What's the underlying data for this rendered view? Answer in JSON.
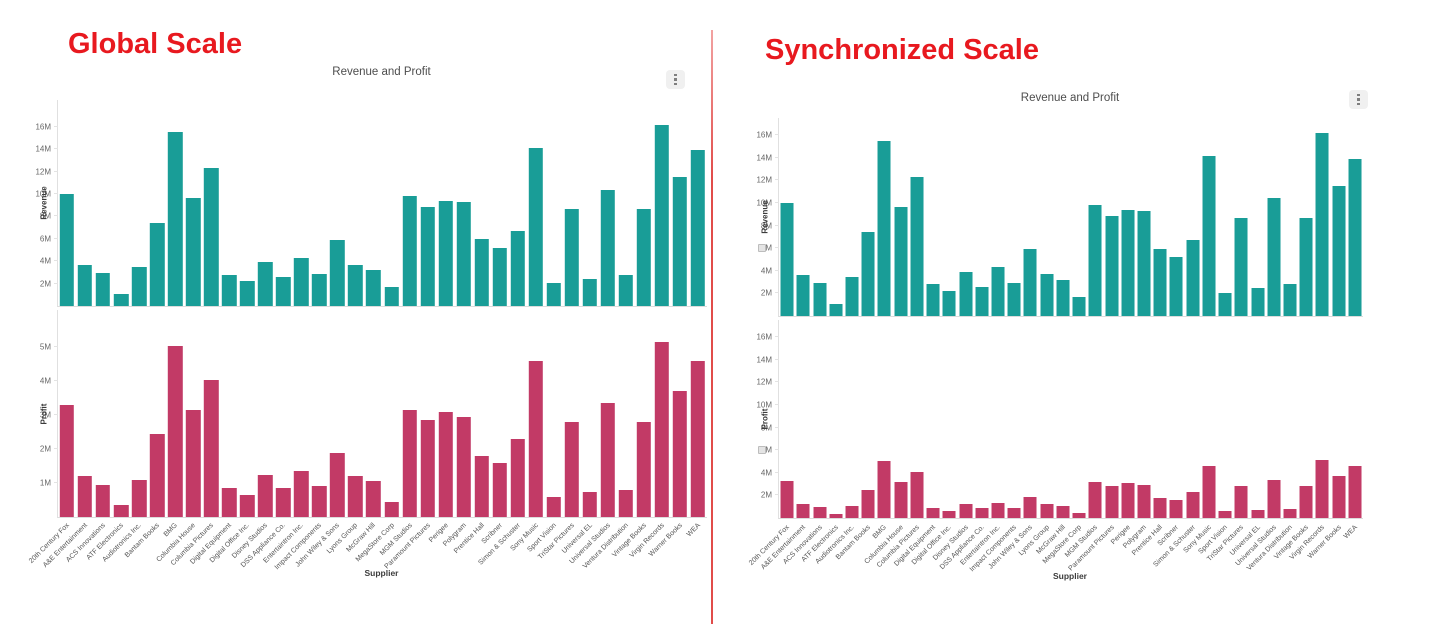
{
  "colors": {
    "revenue_bar": "#199d97",
    "profit_bar": "#c23a66",
    "heading_red": "#e8191f",
    "divider_red": "#e14c4a"
  },
  "panels": [
    {
      "heading": "Global Scale",
      "chart_title": "Revenue and Profit",
      "menu_icon": "kebab-menu-icon",
      "x_axis_title": "Supplier",
      "y_axes": [
        {
          "title": "Revenue",
          "ticks": [
            "2M",
            "4M",
            "6M",
            "8M",
            "10M",
            "12M",
            "14M",
            "16M"
          ]
        },
        {
          "title": "Profit",
          "ticks": [
            "1M",
            "2M",
            "3M",
            "4M",
            "5M"
          ]
        }
      ]
    },
    {
      "heading": "Synchronized Scale",
      "chart_title": "Revenue and Profit",
      "menu_icon": "kebab-menu-icon",
      "x_axis_title": "Supplier",
      "sync_icon": "axis-sync-icon",
      "y_axes": [
        {
          "title": "Revenue",
          "ticks": [
            "2M",
            "4M",
            "6M",
            "8M",
            "10M",
            "12M",
            "14M",
            "16M"
          ]
        },
        {
          "title": "Profit",
          "ticks": [
            "2M",
            "4M",
            "6M",
            "8M",
            "10M",
            "12M",
            "14M",
            "16M"
          ]
        }
      ]
    }
  ],
  "chart_data": [
    {
      "type": "bar",
      "panel": "Global Scale",
      "title": "Revenue and Profit",
      "xlabel": "Supplier",
      "units": "M",
      "grid": false,
      "legend": false,
      "categories": [
        "20th Century Fox",
        "A&E Entertainment",
        "ACS Innovations",
        "ATF Electronics",
        "Audiotronics Inc.",
        "Bantam Books",
        "BMG",
        "Columbia House",
        "Columbia Pictures",
        "Digital Equipment",
        "Digital Office Inc.",
        "Disney Studios",
        "DSS Appliance Co.",
        "Entertaintron Inc.",
        "Impact Components",
        "John Wiley & Sons",
        "Lyons Group",
        "McGraw Hill",
        "MegaStore Corp",
        "MGM Studios",
        "Paramount Pictures",
        "Perigee",
        "Polygram",
        "Prentice Hall",
        "Scribner",
        "Simon & Schuster",
        "Sony Music",
        "Sport Vision",
        "TriStar Pictures",
        "Universal EL",
        "Universal Studios",
        "Ventura Distribution",
        "Vintage Books",
        "Virgin Records",
        "Warner Books",
        "WEA"
      ],
      "series": [
        {
          "name": "Revenue",
          "color": "#199d97",
          "values": [
            10.0,
            3.65,
            2.95,
            1.1,
            3.45,
            7.4,
            15.5,
            9.65,
            12.3,
            2.8,
            2.2,
            3.9,
            2.6,
            4.3,
            2.9,
            5.9,
            3.7,
            3.2,
            1.7,
            9.85,
            8.85,
            9.4,
            9.25,
            5.95,
            5.2,
            6.7,
            14.1,
            2.05,
            8.7,
            2.45,
            10.4,
            2.8,
            8.7,
            16.2,
            11.5,
            13.9
          ]
        },
        {
          "name": "Profit",
          "color": "#c23a66",
          "values": [
            3.3,
            1.2,
            0.95,
            0.35,
            1.1,
            2.45,
            5.05,
            3.15,
            4.05,
            0.85,
            0.65,
            1.25,
            0.85,
            1.35,
            0.9,
            1.9,
            1.2,
            1.05,
            0.45,
            3.15,
            2.85,
            3.1,
            2.95,
            1.8,
            1.6,
            2.3,
            4.6,
            0.6,
            2.8,
            0.75,
            3.35,
            0.8,
            2.8,
            5.15,
            3.7,
            4.6
          ]
        }
      ],
      "revenue_ylim_M": [
        0,
        18.4
      ],
      "revenue_ticks_M": [
        2,
        4,
        6,
        8,
        10,
        12,
        14,
        16
      ],
      "profit_ylim_M": [
        0,
        6.1
      ],
      "profit_ticks_M": [
        1,
        2,
        3,
        4,
        5
      ]
    },
    {
      "type": "bar",
      "panel": "Synchronized Scale",
      "title": "Revenue and Profit",
      "xlabel": "Supplier",
      "units": "M",
      "grid": false,
      "legend": false,
      "categories": [
        "20th Century Fox",
        "A&E Entertainment",
        "ACS Innovations",
        "ATF Electronics",
        "Audiotronics Inc.",
        "Bantam Books",
        "BMG",
        "Columbia House",
        "Columbia Pictures",
        "Digital Equipment",
        "Digital Office Inc.",
        "Disney Studios",
        "DSS Appliance Co.",
        "Entertaintron Inc.",
        "Impact Components",
        "John Wiley & Sons",
        "Lyons Group",
        "McGraw Hill",
        "MegaStore Corp",
        "MGM Studios",
        "Paramount Pictures",
        "Perigee",
        "Polygram",
        "Prentice Hall",
        "Scribner",
        "Simon & Schuster",
        "Sony Music",
        "Sport Vision",
        "TriStar Pictures",
        "Universal EL",
        "Universal Studios",
        "Ventura Distribution",
        "Vintage Books",
        "Virgin Records",
        "Warner Books",
        "WEA"
      ],
      "series": [
        {
          "name": "Revenue",
          "color": "#199d97",
          "values": [
            10.0,
            3.65,
            2.95,
            1.1,
            3.45,
            7.4,
            15.5,
            9.65,
            12.3,
            2.8,
            2.2,
            3.9,
            2.6,
            4.3,
            2.9,
            5.9,
            3.7,
            3.2,
            1.7,
            9.85,
            8.85,
            9.4,
            9.25,
            5.95,
            5.2,
            6.7,
            14.1,
            2.05,
            8.7,
            2.45,
            10.4,
            2.8,
            8.7,
            16.2,
            11.5,
            13.9
          ]
        },
        {
          "name": "Profit",
          "color": "#c23a66",
          "values": [
            3.3,
            1.2,
            0.95,
            0.35,
            1.1,
            2.45,
            5.05,
            3.15,
            4.05,
            0.85,
            0.65,
            1.25,
            0.85,
            1.35,
            0.9,
            1.9,
            1.2,
            1.05,
            0.45,
            3.15,
            2.85,
            3.1,
            2.95,
            1.8,
            1.6,
            2.3,
            4.6,
            0.6,
            2.8,
            0.75,
            3.35,
            0.8,
            2.8,
            5.15,
            3.7,
            4.6
          ]
        }
      ],
      "revenue_ylim_M": [
        0,
        17.5
      ],
      "revenue_ticks_M": [
        2,
        4,
        6,
        8,
        10,
        12,
        14,
        16
      ],
      "profit_ylim_M": [
        0,
        17.5
      ],
      "profit_ticks_M": [
        2,
        4,
        6,
        8,
        10,
        12,
        14,
        16
      ]
    }
  ]
}
